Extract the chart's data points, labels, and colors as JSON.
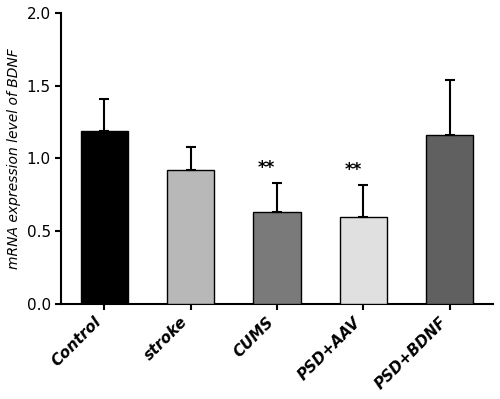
{
  "categories": [
    "Control",
    "stroke",
    "CUMS",
    "PSD+AAV",
    "PSD+BDNF"
  ],
  "values": [
    1.19,
    0.92,
    0.63,
    0.6,
    1.16
  ],
  "errors": [
    0.22,
    0.16,
    0.2,
    0.22,
    0.38
  ],
  "bar_colors": [
    "#000000",
    "#b8b8b8",
    "#7a7a7a",
    "#e0e0e0",
    "#606060"
  ],
  "bar_edge_colors": [
    "#000000",
    "#000000",
    "#000000",
    "#000000",
    "#000000"
  ],
  "significance": [
    false,
    false,
    true,
    true,
    false
  ],
  "sig_label": "**",
  "ylabel": "mRNA expression level of BDNF",
  "ylim": [
    0.0,
    2.0
  ],
  "yticks": [
    0.0,
    0.5,
    1.0,
    1.5,
    2.0
  ],
  "background_color": "#ffffff",
  "bar_width": 0.55,
  "capsize": 3.5,
  "error_linewidth": 1.5,
  "tick_fontsize": 11,
  "ylabel_fontsize": 10,
  "sig_fontsize": 12
}
